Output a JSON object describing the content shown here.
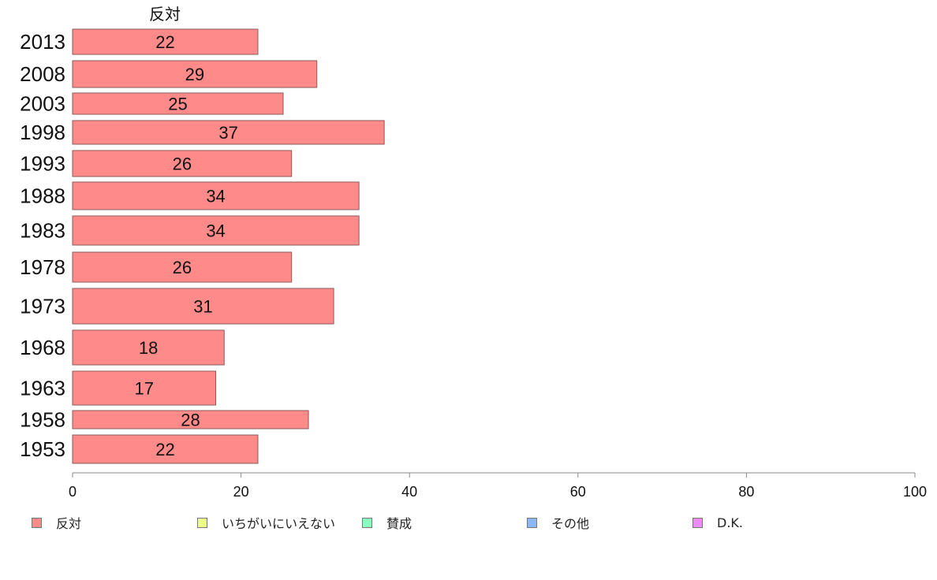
{
  "chart_data": {
    "type": "bar",
    "orientation": "horizontal",
    "categories": [
      "2013",
      "2008",
      "2003",
      "1998",
      "1993",
      "1988",
      "1983",
      "1978",
      "1973",
      "1968",
      "1963",
      "1958",
      "1953"
    ],
    "series": [
      {
        "name": "反対",
        "color": "#ff8a8a",
        "values": [
          22,
          29,
          25,
          37,
          26,
          34,
          34,
          26,
          31,
          18,
          17,
          28,
          22
        ],
        "labels": [
          "22",
          "29",
          "25",
          "37",
          "26",
          "34",
          "34",
          "26",
          "31",
          "18",
          "17",
          "28",
          "22"
        ]
      }
    ],
    "column_header": "反対",
    "xlim": [
      0,
      100
    ],
    "x_ticks": [
      "0",
      "20",
      "40",
      "60",
      "80",
      "100"
    ],
    "grid": false,
    "legend": {
      "placement": "bottom",
      "items": [
        {
          "label": "反対",
          "color": "#ff8a8a"
        },
        {
          "label": "いちがいにいえない",
          "color": "#eeff8a"
        },
        {
          "label": "賛成",
          "color": "#8affc0"
        },
        {
          "label": "その他",
          "color": "#8ab8ff"
        },
        {
          "label": "D.K.",
          "color": "#ee8aff"
        }
      ]
    }
  }
}
